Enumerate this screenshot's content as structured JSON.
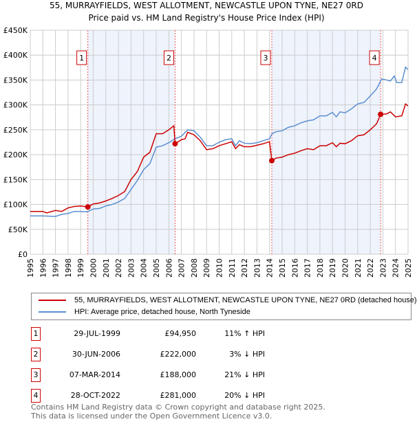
{
  "chart_data": {
    "type": "line",
    "title": "55, MURRAYFIELDS, WEST ALLOTMENT, NEWCASTLE UPON TYNE, NE27 0RD",
    "subtitle": "Price paid vs. HM Land Registry's House Price Index (HPI)",
    "xlim": [
      1995,
      2025
    ],
    "ylim": [
      0,
      450000
    ],
    "yticks": [
      0,
      50000,
      100000,
      150000,
      200000,
      250000,
      300000,
      350000,
      400000,
      450000
    ],
    "ytick_labels": [
      "£0",
      "£50K",
      "£100K",
      "£150K",
      "£200K",
      "£250K",
      "£300K",
      "£350K",
      "£400K",
      "£450K"
    ],
    "xticks": [
      "1995",
      "1996",
      "1997",
      "1998",
      "1999",
      "2000",
      "2001",
      "2002",
      "2003",
      "2004",
      "2005",
      "2006",
      "2007",
      "2008",
      "2009",
      "2010",
      "2011",
      "2012",
      "2013",
      "2014",
      "2015",
      "2016",
      "2017",
      "2018",
      "2019",
      "2020",
      "2021",
      "2022",
      "2023",
      "2024",
      "2025"
    ],
    "grid": true,
    "series": [
      {
        "name": "55, MURRAYFIELDS, WEST ALLOTMENT, NEWCASTLE UPON TYNE, NE27 0RD (detached house)",
        "color": "#cc0000",
        "x": [
          1995,
          1996,
          1996.3,
          1997,
          1997.5,
          1998,
          1998.5,
          1999,
          1999.57,
          2000,
          2000.5,
          2001,
          2001.5,
          2002,
          2002.5,
          2003,
          2003.5,
          2004,
          2004.5,
          2005,
          2005.5,
          2006,
          2006.4,
          2006.5,
          2007,
          2007.3,
          2007.5,
          2008,
          2008.5,
          2009,
          2009.5,
          2010,
          2010.5,
          2011,
          2011.3,
          2011.6,
          2012,
          2012.5,
          2013,
          2013.5,
          2014,
          2014.18,
          2014.5,
          2015,
          2015.5,
          2016,
          2016.5,
          2017,
          2017.5,
          2018,
          2018.5,
          2019,
          2019.3,
          2019.6,
          2020,
          2020.5,
          2021,
          2021.5,
          2022,
          2022.5,
          2022.82,
          2023.3,
          2023.6,
          2024,
          2024.5,
          2024.8,
          2025
        ],
        "y": [
          86000,
          86000,
          83000,
          88000,
          86000,
          93000,
          96000,
          97000,
          94950,
          101000,
          103000,
          107000,
          112000,
          118000,
          126000,
          150000,
          166000,
          195000,
          205000,
          242000,
          242000,
          250000,
          258000,
          222000,
          230000,
          232000,
          245000,
          240000,
          228000,
          210000,
          212000,
          218000,
          222000,
          226000,
          212000,
          220000,
          216000,
          216000,
          219000,
          222000,
          226000,
          188000,
          193000,
          195000,
          200000,
          203000,
          208000,
          212000,
          210000,
          218000,
          218000,
          224000,
          216000,
          223000,
          222000,
          228000,
          238000,
          240000,
          250000,
          262000,
          281000,
          282000,
          286000,
          276000,
          278000,
          302000,
          298000
        ]
      },
      {
        "name": "HPI: Average price, detached house, North Tyneside",
        "color": "#5b8fd0",
        "x": [
          1995,
          1996,
          1997,
          1997.5,
          1998,
          1998.5,
          1999,
          1999.5,
          2000,
          2000.5,
          2001,
          2001.5,
          2002,
          2002.5,
          2003,
          2003.5,
          2004,
          2004.5,
          2005,
          2005.5,
          2006,
          2006.5,
          2007,
          2007.5,
          2008,
          2008.5,
          2009,
          2009.5,
          2010,
          2010.5,
          2011,
          2011.3,
          2011.6,
          2012,
          2012.5,
          2013,
          2013.5,
          2014,
          2014.2,
          2014.5,
          2015,
          2015.5,
          2016,
          2016.5,
          2017,
          2017.5,
          2018,
          2018.5,
          2019,
          2019.3,
          2019.6,
          2020,
          2020.5,
          2021,
          2021.5,
          2022,
          2022.5,
          2022.9,
          2023.3,
          2023.6,
          2023.9,
          2024.1,
          2024.5,
          2024.8,
          2025
        ],
        "y": [
          77000,
          77000,
          76000,
          80000,
          82000,
          86000,
          86000,
          85000,
          91000,
          92000,
          97000,
          100000,
          105000,
          112000,
          130000,
          148000,
          170000,
          182000,
          215000,
          218000,
          224000,
          232000,
          237000,
          250000,
          248000,
          235000,
          218000,
          218000,
          225000,
          230000,
          232000,
          218000,
          228000,
          223000,
          222000,
          224000,
          228000,
          232000,
          242000,
          246000,
          248000,
          255000,
          258000,
          264000,
          268000,
          270000,
          278000,
          278000,
          285000,
          276000,
          286000,
          284000,
          292000,
          302000,
          305000,
          318000,
          332000,
          352000,
          350000,
          348000,
          358000,
          345000,
          345000,
          376000,
          371000
        ]
      }
    ],
    "sales": [
      {
        "label": "1",
        "x": 1999.57,
        "date": "29-JUL-1999",
        "price": 94950,
        "price_label": "£94,950",
        "hpi": "11% ↑ HPI"
      },
      {
        "label": "2",
        "x": 2006.5,
        "date": "30-JUN-2006",
        "price": 222000,
        "price_label": "£222,000",
        "hpi": "3% ↓ HPI"
      },
      {
        "label": "3",
        "x": 2014.18,
        "date": "07-MAR-2014",
        "price": 188000,
        "price_label": "£188,000",
        "hpi": "21% ↓ HPI"
      },
      {
        "label": "4",
        "x": 2022.82,
        "date": "28-OCT-2022",
        "price": 281000,
        "price_label": "£281,000",
        "hpi": "20% ↓ HPI"
      }
    ],
    "legend_placement": "below"
  },
  "footer": [
    "Contains HM Land Registry data © Crown copyright and database right 2025.",
    "This data is licensed under the Open Government Licence v3.0."
  ]
}
